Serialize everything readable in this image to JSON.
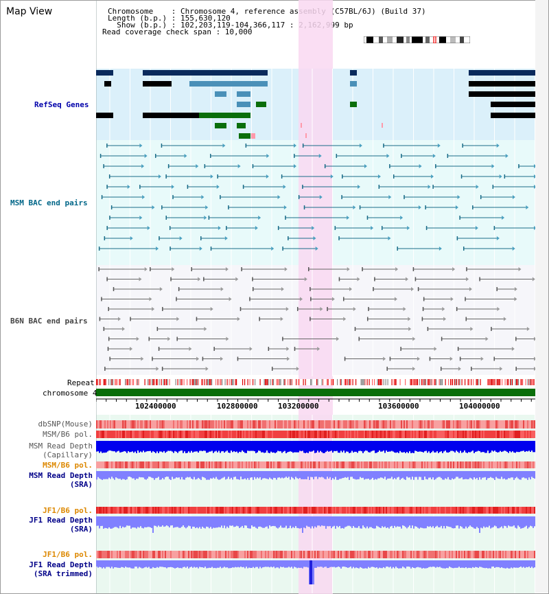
{
  "page_title": "Map View",
  "info": {
    "line1": "Chromosome    : Chromosome 4, reference assembly (C57BL/6J) (Build 37)",
    "line2": "Length (b.p.) : 155,630,120",
    "line3": "  Show (b.p.) : 102,203,119-104,366,117 : 2,162,999 bp",
    "line4": "Read coverage check span : 10,000"
  },
  "tracks": {
    "refseq": "RefSeq Genes",
    "msm_bac": "MSM BAC end pairs",
    "b6n_bac": "B6N BAC end pairs",
    "repeat": "Repeat",
    "chromosome": "chromosome 4",
    "dbsnp": "dbSNP(Mouse)",
    "msm_b6_pol": "MSM/B6 pol.",
    "msm_read_depth_cap_1": "MSM Read Depth",
    "msm_read_depth_cap_2": "(Capillary)",
    "msm_b6_pol_2": "MSM/B6 pol.",
    "msm_read_depth_sra_1": "MSM Read Depth",
    "msm_read_depth_sra_2": "(SRA)",
    "jf1_b6_pol": "JF1/B6 pol.",
    "jf1_read_depth_sra_1": "JF1 Read Depth",
    "jf1_read_depth_sra_2": "(SRA)",
    "jf1_b6_pol_2": "JF1/B6 pol.",
    "jf1_read_depth_trim_1": "JF1 Read Depth",
    "jf1_read_depth_trim_2": "(SRA trimmed)"
  },
  "axis": {
    "ticks": [
      "102400000",
      "102800000",
      "103200000",
      "103600000",
      "104000000"
    ]
  },
  "colors": {
    "refseq_bg": "#dbf0fa",
    "msm_bg": "#e8fafa",
    "b6n_bg": "#f6f6fa",
    "highlight": "#f9d8f1",
    "refseq_label": "#0000aa",
    "msm_label": "#006688",
    "b6n_label": "#444444",
    "gene_navy": "#0a2a5c",
    "gene_blue": "#4a90b8",
    "gene_green": "#0a6e0a",
    "msm_line": "#1a6c88",
    "b6n_line": "#666666",
    "chromosome": "#0a6e0a",
    "depth_blue": "#0000ee",
    "depth_light": "#8080ff",
    "pol_orange": "#dd8800",
    "navy": "#000088"
  }
}
